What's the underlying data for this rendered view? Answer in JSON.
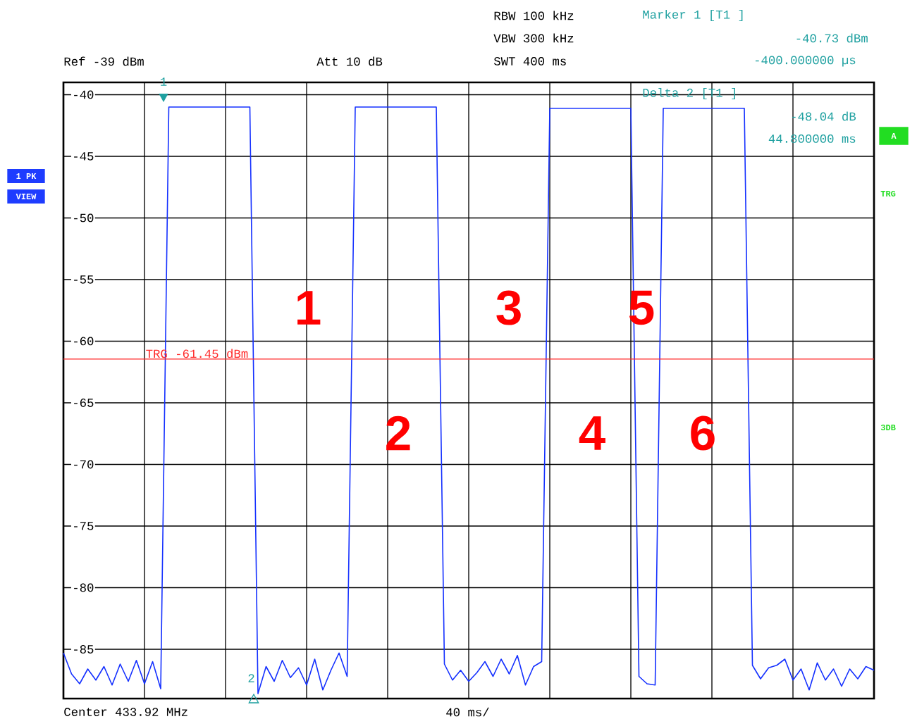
{
  "chart_data": {
    "type": "line",
    "color": "#1430ff",
    "categories": [
      null,
      null,
      null,
      null,
      null,
      null,
      null,
      null,
      null,
      null,
      null,
      null,
      null,
      null,
      null,
      null,
      null,
      null,
      null,
      null,
      null,
      null,
      null,
      null,
      null,
      null,
      null,
      null,
      null,
      null,
      null,
      null,
      null,
      null,
      null,
      null,
      null,
      null,
      null,
      null,
      null,
      null,
      null,
      null,
      null,
      null,
      null,
      null,
      null,
      null,
      null,
      null,
      null,
      null,
      null,
      null,
      null,
      null,
      null,
      null,
      null,
      null,
      null,
      null,
      null,
      null,
      null,
      null,
      null,
      null,
      null,
      null,
      null,
      null,
      null,
      null,
      null,
      null,
      null,
      null,
      null,
      null,
      null,
      null,
      null,
      null,
      null,
      null,
      null,
      null,
      null,
      null,
      null,
      null,
      null,
      null,
      null,
      null,
      null,
      null,
      null
    ],
    "values": [
      -85.3,
      -87,
      -87.8,
      -86.6,
      -87.5,
      -86.4,
      -87.9,
      -86.2,
      -87.6,
      -85.9,
      -87.8,
      -86,
      -88.2,
      -41,
      -41,
      -41,
      -41,
      -41,
      -41,
      -41,
      -41,
      -41,
      -41,
      -41,
      -88.6,
      -86.4,
      -87.6,
      -85.9,
      -87.3,
      -86.5,
      -87.9,
      -85.8,
      -88.3,
      -86.7,
      -85.3,
      -87.2,
      -41,
      -41,
      -41,
      -41,
      -41,
      -41,
      -41,
      -41,
      -41,
      -41,
      -41,
      -86.2,
      -87.5,
      -86.7,
      -87.6,
      -86.9,
      -86,
      -87.2,
      -85.8,
      -87,
      -85.5,
      -87.9,
      -86.4,
      -86,
      -41.1,
      -41.1,
      -41.1,
      -41.1,
      -41.1,
      -41.1,
      -41.1,
      -41.1,
      -41.1,
      -41.1,
      -41.1,
      -87.2,
      -87.8,
      -87.9,
      -41.1,
      -41.1,
      -41.1,
      -41.1,
      -41.1,
      -41.1,
      -41.1,
      -41.1,
      -41.1,
      -41.1,
      -41.1,
      -86.3,
      -87.4,
      -86.5,
      -86.3,
      -85.8,
      -87.5,
      -86.6,
      -88.3,
      -86.1,
      -87.5,
      -86.6,
      -88,
      -86.6,
      -87.4,
      -86.4,
      -86.7
    ],
    "ylim": [
      -89,
      -39
    ],
    "yticks": [
      {
        "value": -85,
        "label": "-85"
      },
      {
        "value": -80,
        "label": "-80"
      },
      {
        "value": -75,
        "label": "-75"
      },
      {
        "value": -70,
        "label": "-70"
      },
      {
        "value": -65,
        "label": "-65"
      },
      {
        "value": -60,
        "label": "-60"
      },
      {
        "value": -55,
        "label": "-55"
      },
      {
        "value": -50,
        "label": "-50"
      },
      {
        "value": -45,
        "label": "-45"
      },
      {
        "value": -40,
        "label": "-40"
      }
    ],
    "grid": true,
    "ref_lines": [
      {
        "axis": "y",
        "value": -61.45,
        "label": "TRG -61.45 dBm",
        "color": "#ff2a2a"
      }
    ],
    "annotations": [
      "RBW 100 kHz",
      "VBW 300 kHz",
      "SWT 400 ms",
      "Ref -39 dBm",
      "Att 10 dB",
      "Marker 1 [T1 ]",
      "-40.73 dBm",
      "-400.000000 µs",
      "Delta 2 [T1 ]",
      "-48.04 dB",
      "44.800000 ms",
      "1 PK",
      "VIEW",
      "A",
      "TRG",
      "3DB",
      "Center 433.92 MHz",
      "40 ms/",
      "1",
      "2",
      "1",
      "2",
      "3",
      "4",
      "5",
      "6"
    ]
  }
}
